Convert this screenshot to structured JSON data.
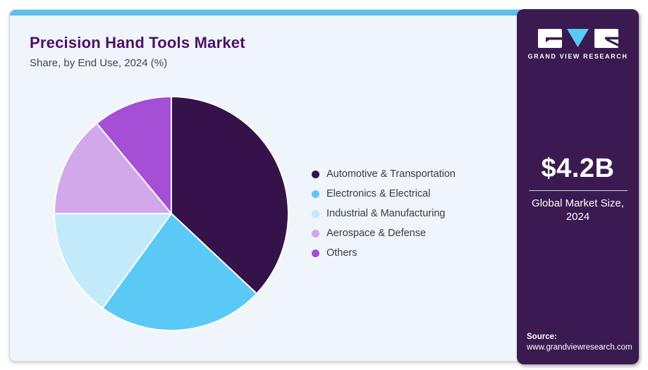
{
  "header": {
    "title": "Precision Hand Tools Market",
    "subtitle": "Share, by End Use, 2024 (%)"
  },
  "chart_data": {
    "type": "pie",
    "title": "Precision Hand Tools Market Share, by End Use, 2024 (%)",
    "categories": [
      "Automotive & Transportation",
      "Electronics & Electrical",
      "Industrial & Manufacturing",
      "Aerospace & Defense",
      "Others"
    ],
    "values": [
      37,
      23,
      15,
      14,
      11
    ],
    "unit": "%",
    "colors": [
      "#36124B",
      "#5BC9F5",
      "#C3EAFA",
      "#D2A8EA",
      "#A44FD6"
    ],
    "start_angle_deg": 0,
    "direction": "clockwise",
    "legend_position": "right",
    "slice_border_color": "#FFFFFF"
  },
  "sidebar": {
    "logo": {
      "brand": "GRAND VIEW RESEARCH"
    },
    "market_size": {
      "value": "$4.2B",
      "label_line1": "Global Market Size,",
      "label_line2": "2024"
    },
    "source": {
      "label": "Source:",
      "url": "www.grandviewresearch.com"
    }
  },
  "colors": {
    "top_bar": "#5CBFE8",
    "card_background": "#EFF5FA",
    "sidebar_background": "#3A1A50",
    "title_text": "#4D1068",
    "subtitle_text": "#44444C",
    "legend_text": "#3A3A44",
    "logo_triangle": "#5BC9F5"
  }
}
